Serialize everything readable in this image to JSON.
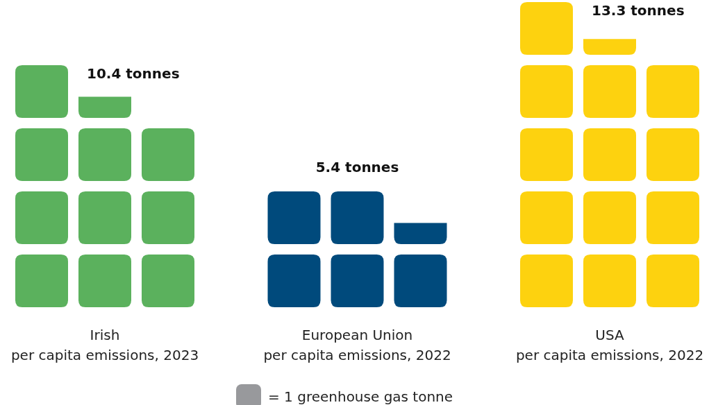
{
  "chart_data": {
    "type": "other",
    "categories": [
      "Irish\nper capita emissions, 2023",
      "European Union\nper capita emissions, 2022",
      "USA\nper capita emissions, 2022"
    ],
    "values": [
      10.4,
      5.4,
      13.3
    ],
    "value_labels": [
      "10.4 tonnes",
      "5.4 tonnes",
      "13.3 tonnes"
    ],
    "colors": [
      "#5bb15d",
      "#004a7c",
      "#fdd20f"
    ],
    "annotations": [
      "= 1 greenhouse gas tonne"
    ]
  }
}
